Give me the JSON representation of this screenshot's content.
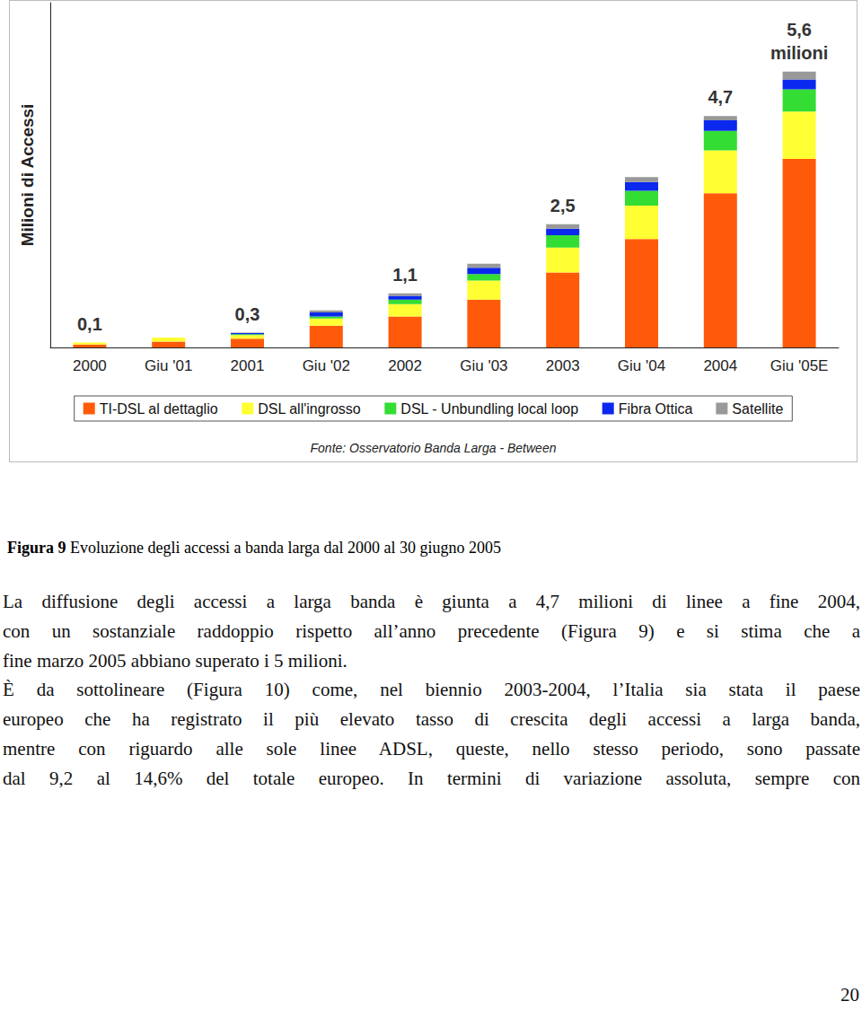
{
  "chart_data": {
    "type": "bar",
    "stacked": true,
    "y_label": "Milioni di Accessi",
    "source": "Fonte: Osservatorio Banda Larga - Between",
    "categories": [
      "2000",
      "Giu '01",
      "2001",
      "Giu '02",
      "2002",
      "Giu '03",
      "2003",
      "Giu '04",
      "2004",
      "Giu '05E"
    ],
    "series": [
      {
        "name": "TI-DSL al dettaglio",
        "color": "#ff5a0a",
        "values": [
          0.06,
          0.12,
          0.18,
          0.44,
          0.63,
          0.97,
          1.52,
          2.2,
          3.13,
          3.83
        ]
      },
      {
        "name": "DSL all'ingrosso",
        "color": "#ffff33",
        "values": [
          0.04,
          0.08,
          0.07,
          0.15,
          0.25,
          0.39,
          0.51,
          0.68,
          0.87,
          0.96
        ]
      },
      {
        "name": "DSL - Unbundling local loop",
        "color": "#33dd33",
        "values": [
          0,
          0,
          0.02,
          0.04,
          0.09,
          0.13,
          0.25,
          0.3,
          0.4,
          0.45
        ]
      },
      {
        "name": "Fibra Ottica",
        "color": "#0a28ee",
        "values": [
          0,
          0,
          0.02,
          0.08,
          0.08,
          0.13,
          0.13,
          0.18,
          0.21,
          0.2
        ]
      },
      {
        "name": "Satellite",
        "color": "#999999",
        "values": [
          0,
          0,
          0.01,
          0.04,
          0.05,
          0.08,
          0.09,
          0.1,
          0.09,
          0.16
        ]
      }
    ],
    "annotations": [
      {
        "category": "2000",
        "text": "0,1"
      },
      {
        "category": "2001",
        "text": "0,3"
      },
      {
        "category": "2002",
        "text": "1,1"
      },
      {
        "category": "2003",
        "text": "2,5"
      },
      {
        "category": "2004",
        "text": "4,7"
      },
      {
        "category": "Giu '05E",
        "text": "5,6\nmilioni"
      }
    ],
    "ylim": [
      0,
      7
    ],
    "tick_labels": "x",
    "grid": false,
    "legend": "bottom"
  },
  "document": {
    "figure_caption": {
      "label": "Figura 9",
      "text": "Evoluzione degli accessi a banda larga dal 2000 al 30 giugno 2005"
    },
    "paragraphs": [
      [
        "La diffusione degli accessi a larga banda è giunta a 4,7 milioni di linee a fine 2004,",
        "con un sostanziale raddoppio rispetto all’anno precedente (Figura 9) e si stima che a",
        "fine marzo 2005 abbiano superato i 5 milioni."
      ],
      [
        "È da sottolineare (Figura 10) come, nel biennio 2003-2004, l’Italia sia stata il paese",
        "europeo che ha registrato il più elevato tasso di crescita degli accessi a larga banda,",
        "mentre con riguardo alle sole linee ADSL, queste, nello stesso periodo, sono passate",
        "dal 9,2 al 14,6% del totale europeo. In termini di variazione assoluta, sempre con"
      ]
    ],
    "page_number": 20
  }
}
